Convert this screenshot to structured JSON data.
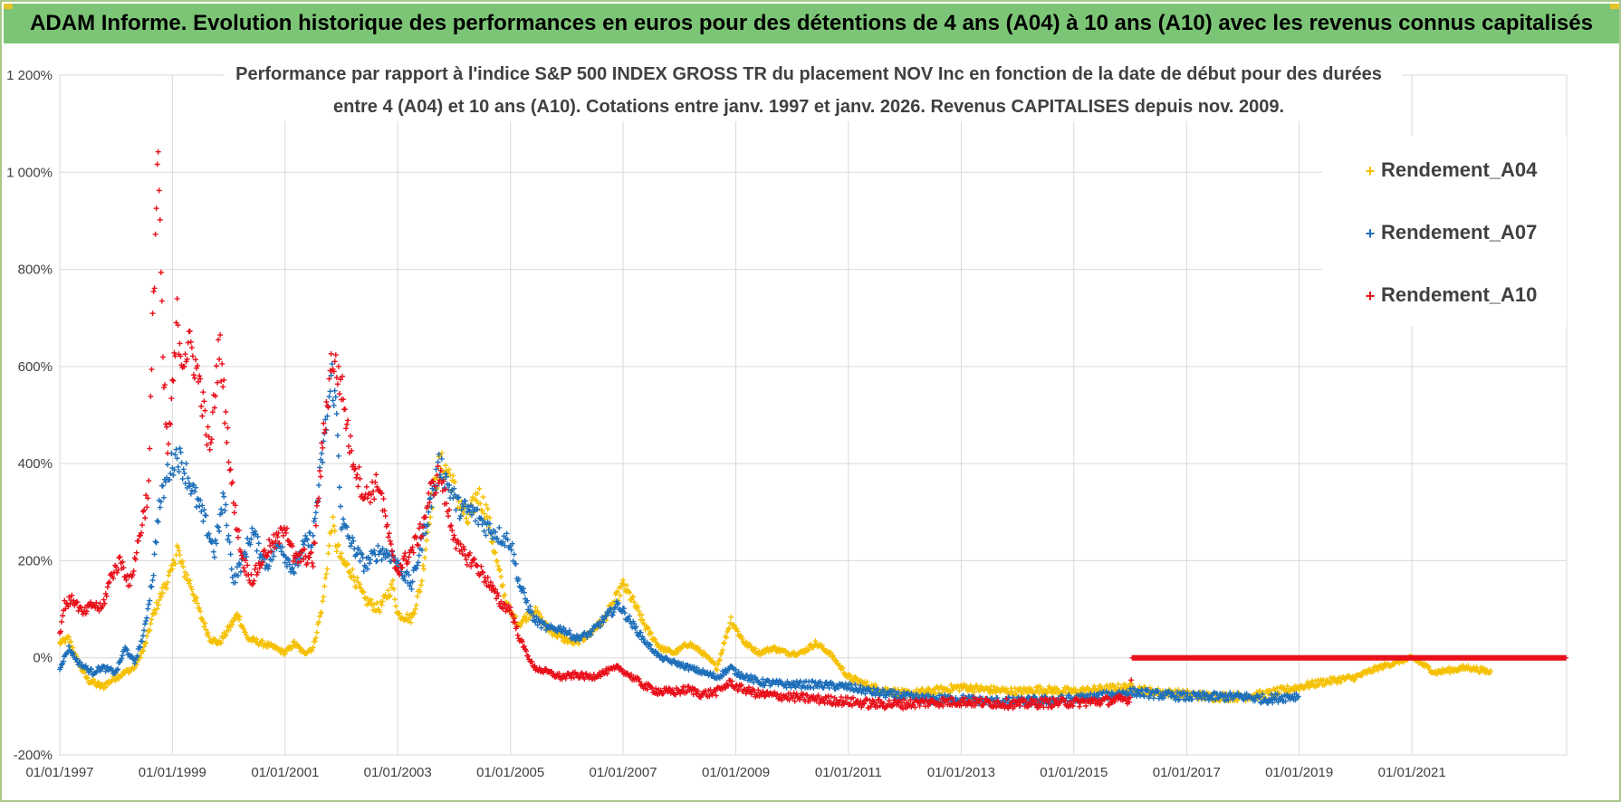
{
  "header": {
    "title": "ADAM Informe. Evolution historique des performances en euros pour des détentions de 4 ans (A04) à 10 ans (A10) avec les revenus connus capitalisés"
  },
  "chart_data": {
    "type": "scatter",
    "title_lines": [
      "Performance par rapport à l'indice S&P 500 INDEX GROSS TR  du placement NOV Inc en fonction de la date de début pour des durées",
      "entre 4 (A04) et 10 ans (A10). Cotations entre janv. 1997 et janv. 2026. Revenus CAPITALISES depuis nov. 2009."
    ],
    "xlabel": "",
    "ylabel": "",
    "x_range": [
      "1997-01-01",
      "2023-10-01"
    ],
    "ylim": [
      -200,
      1200
    ],
    "grid": true,
    "legend_position": "top-right",
    "x_tick_labels": [
      "01/01/1997",
      "01/01/1999",
      "01/01/2001",
      "01/01/2003",
      "01/01/2005",
      "01/01/2007",
      "01/01/2009",
      "01/01/2011",
      "01/01/2013",
      "01/01/2015",
      "01/01/2017",
      "01/01/2019",
      "01/01/2021"
    ],
    "x_tick_dates": [
      "1997-01-01",
      "1999-01-01",
      "2001-01-01",
      "2003-01-01",
      "2005-01-01",
      "2007-01-01",
      "2009-01-01",
      "2011-01-01",
      "2013-01-01",
      "2015-01-01",
      "2017-01-01",
      "2019-01-01",
      "2021-01-01"
    ],
    "y_tick_values": [
      -200,
      0,
      200,
      400,
      600,
      800,
      1000,
      1200
    ],
    "y_tick_labels": [
      "-200%",
      "0%",
      "200%",
      "400%",
      "600%",
      "800%",
      "1 000%",
      "1 200%"
    ],
    "series": [
      {
        "name": "Rendement_A04",
        "color": "#f5c000",
        "points": [
          [
            "1997-01-01",
            30
          ],
          [
            "1997-03-01",
            40
          ],
          [
            "1997-05-01",
            -10
          ],
          [
            "1997-07-01",
            -45
          ],
          [
            "1997-10-01",
            -60
          ],
          [
            "1998-01-01",
            -40
          ],
          [
            "1998-03-01",
            -30
          ],
          [
            "1998-05-01",
            -20
          ],
          [
            "1998-07-01",
            20
          ],
          [
            "1998-09-01",
            90
          ],
          [
            "1998-11-01",
            140
          ],
          [
            "1999-01-01",
            180
          ],
          [
            "1999-02-01",
            230
          ],
          [
            "1999-03-01",
            190
          ],
          [
            "1999-05-01",
            150
          ],
          [
            "1999-07-01",
            90
          ],
          [
            "1999-09-01",
            40
          ],
          [
            "1999-11-01",
            30
          ],
          [
            "2000-01-01",
            60
          ],
          [
            "2000-03-01",
            90
          ],
          [
            "2000-05-01",
            40
          ],
          [
            "2000-08-01",
            30
          ],
          [
            "2000-11-01",
            20
          ],
          [
            "2001-01-01",
            10
          ],
          [
            "2001-03-01",
            30
          ],
          [
            "2001-05-01",
            10
          ],
          [
            "2001-07-01",
            20
          ],
          [
            "2001-09-01",
            110
          ],
          [
            "2001-11-01",
            280
          ],
          [
            "2001-12-01",
            230
          ],
          [
            "2002-01-01",
            200
          ],
          [
            "2002-03-01",
            180
          ],
          [
            "2002-06-01",
            120
          ],
          [
            "2002-09-01",
            100
          ],
          [
            "2002-12-01",
            150
          ],
          [
            "2003-01-01",
            90
          ],
          [
            "2003-04-01",
            80
          ],
          [
            "2003-06-01",
            150
          ],
          [
            "2003-08-01",
            310
          ],
          [
            "2003-10-01",
            400
          ],
          [
            "2003-12-01",
            380
          ],
          [
            "2004-02-01",
            320
          ],
          [
            "2004-04-01",
            280
          ],
          [
            "2004-06-01",
            340
          ],
          [
            "2004-08-01",
            300
          ],
          [
            "2004-10-01",
            200
          ],
          [
            "2004-12-01",
            120
          ],
          [
            "2005-01-01",
            90
          ],
          [
            "2005-03-01",
            70
          ],
          [
            "2005-06-01",
            100
          ],
          [
            "2005-09-01",
            60
          ],
          [
            "2005-12-01",
            40
          ],
          [
            "2006-03-01",
            30
          ],
          [
            "2006-06-01",
            50
          ],
          [
            "2006-09-01",
            80
          ],
          [
            "2006-12-01",
            130
          ],
          [
            "2007-01-01",
            150
          ],
          [
            "2007-03-01",
            120
          ],
          [
            "2007-06-01",
            60
          ],
          [
            "2007-09-01",
            20
          ],
          [
            "2007-12-01",
            10
          ],
          [
            "2008-03-01",
            30
          ],
          [
            "2008-06-01",
            10
          ],
          [
            "2008-09-01",
            -20
          ],
          [
            "2008-12-01",
            80
          ],
          [
            "2009-01-01",
            60
          ],
          [
            "2009-03-01",
            30
          ],
          [
            "2009-06-01",
            10
          ],
          [
            "2009-09-01",
            20
          ],
          [
            "2009-12-01",
            10
          ],
          [
            "2010-03-01",
            10
          ],
          [
            "2010-06-01",
            30
          ],
          [
            "2010-09-01",
            10
          ],
          [
            "2011-01-01",
            -40
          ],
          [
            "2011-06-01",
            -60
          ],
          [
            "2012-01-01",
            -75
          ],
          [
            "2012-06-01",
            -70
          ],
          [
            "2013-01-01",
            -60
          ],
          [
            "2013-06-01",
            -65
          ],
          [
            "2014-01-01",
            -70
          ],
          [
            "2014-06-01",
            -65
          ],
          [
            "2015-01-01",
            -70
          ],
          [
            "2015-06-01",
            -65
          ],
          [
            "2016-01-01",
            -60
          ],
          [
            "2016-06-01",
            -70
          ],
          [
            "2017-01-01",
            -75
          ],
          [
            "2017-06-01",
            -80
          ],
          [
            "2018-01-01",
            -80
          ],
          [
            "2018-06-01",
            -75
          ],
          [
            "2019-01-01",
            -60
          ],
          [
            "2019-06-01",
            -50
          ],
          [
            "2020-01-01",
            -40
          ],
          [
            "2020-06-01",
            -20
          ],
          [
            "2021-01-01",
            0
          ],
          [
            "2021-06-01",
            -30
          ],
          [
            "2022-01-01",
            -20
          ],
          [
            "2022-06-01",
            -30
          ]
        ]
      },
      {
        "name": "Rendement_A07",
        "color": "#1f6fba",
        "points": [
          [
            "1997-01-01",
            -20
          ],
          [
            "1997-03-01",
            20
          ],
          [
            "1997-05-01",
            -10
          ],
          [
            "1997-08-01",
            -30
          ],
          [
            "1997-10-01",
            -20
          ],
          [
            "1998-01-01",
            -30
          ],
          [
            "1998-03-01",
            20
          ],
          [
            "1998-05-01",
            -10
          ],
          [
            "1998-07-01",
            50
          ],
          [
            "1998-09-01",
            180
          ],
          [
            "1998-10-01",
            300
          ],
          [
            "1998-12-01",
            380
          ],
          [
            "1999-02-01",
            420
          ],
          [
            "1999-04-01",
            380
          ],
          [
            "1999-06-01",
            330
          ],
          [
            "1999-08-01",
            280
          ],
          [
            "1999-10-01",
            220
          ],
          [
            "1999-12-01",
            330
          ],
          [
            "2000-02-01",
            160
          ],
          [
            "2000-04-01",
            200
          ],
          [
            "2000-06-01",
            260
          ],
          [
            "2000-09-01",
            190
          ],
          [
            "2000-12-01",
            240
          ],
          [
            "2001-01-01",
            210
          ],
          [
            "2001-03-01",
            180
          ],
          [
            "2001-05-01",
            230
          ],
          [
            "2001-07-01",
            250
          ],
          [
            "2001-09-01",
            420
          ],
          [
            "2001-11-01",
            580
          ],
          [
            "2001-12-01",
            500
          ],
          [
            "2002-01-01",
            280
          ],
          [
            "2002-03-01",
            240
          ],
          [
            "2002-06-01",
            190
          ],
          [
            "2002-09-01",
            220
          ],
          [
            "2002-12-01",
            210
          ],
          [
            "2003-01-01",
            190
          ],
          [
            "2003-04-01",
            150
          ],
          [
            "2003-06-01",
            230
          ],
          [
            "2003-08-01",
            320
          ],
          [
            "2003-10-01",
            400
          ],
          [
            "2003-12-01",
            350
          ],
          [
            "2004-02-01",
            310
          ],
          [
            "2004-05-01",
            300
          ],
          [
            "2004-08-01",
            270
          ],
          [
            "2004-11-01",
            250
          ],
          [
            "2005-01-01",
            240
          ],
          [
            "2005-03-01",
            150
          ],
          [
            "2005-06-01",
            80
          ],
          [
            "2005-09-01",
            60
          ],
          [
            "2005-12-01",
            60
          ],
          [
            "2006-03-01",
            40
          ],
          [
            "2006-06-01",
            50
          ],
          [
            "2006-09-01",
            80
          ],
          [
            "2006-12-01",
            110
          ],
          [
            "2007-03-01",
            70
          ],
          [
            "2007-06-01",
            30
          ],
          [
            "2007-09-01",
            0
          ],
          [
            "2007-12-01",
            -10
          ],
          [
            "2008-03-01",
            -20
          ],
          [
            "2008-06-01",
            -30
          ],
          [
            "2008-09-01",
            -40
          ],
          [
            "2008-12-01",
            -20
          ],
          [
            "2009-01-01",
            -30
          ],
          [
            "2009-06-01",
            -50
          ],
          [
            "2009-12-01",
            -55
          ],
          [
            "2010-06-01",
            -55
          ],
          [
            "2011-01-01",
            -60
          ],
          [
            "2011-06-01",
            -70
          ],
          [
            "2012-01-01",
            -80
          ],
          [
            "2012-06-01",
            -85
          ],
          [
            "2013-01-01",
            -85
          ],
          [
            "2013-06-01",
            -90
          ],
          [
            "2014-01-01",
            -90
          ],
          [
            "2014-06-01",
            -88
          ],
          [
            "2015-01-01",
            -85
          ],
          [
            "2015-06-01",
            -80
          ],
          [
            "2016-01-01",
            -70
          ],
          [
            "2016-06-01",
            -75
          ],
          [
            "2017-01-01",
            -80
          ],
          [
            "2017-06-01",
            -80
          ],
          [
            "2018-01-01",
            -80
          ],
          [
            "2018-06-01",
            -85
          ],
          [
            "2019-01-01",
            -78
          ]
        ]
      },
      {
        "name": "Rendement_A10",
        "color": "#e8101b",
        "points": [
          [
            "1997-01-01",
            50
          ],
          [
            "1997-02-01",
            110
          ],
          [
            "1997-04-01",
            120
          ],
          [
            "1997-06-01",
            90
          ],
          [
            "1997-08-01",
            110
          ],
          [
            "1997-10-01",
            100
          ],
          [
            "1997-12-01",
            170
          ],
          [
            "1998-02-01",
            200
          ],
          [
            "1998-04-01",
            150
          ],
          [
            "1998-06-01",
            250
          ],
          [
            "1998-08-01",
            350
          ],
          [
            "1998-09-01",
            750
          ],
          [
            "1998-10-01",
            1060
          ],
          [
            "1998-11-01",
            600
          ],
          [
            "1998-12-01",
            420
          ],
          [
            "1999-01-01",
            540
          ],
          [
            "1999-02-01",
            700
          ],
          [
            "1999-03-01",
            620
          ],
          [
            "1999-05-01",
            640
          ],
          [
            "1999-07-01",
            560
          ],
          [
            "1999-09-01",
            420
          ],
          [
            "1999-11-01",
            650
          ],
          [
            "1999-12-01",
            540
          ],
          [
            "2000-02-01",
            320
          ],
          [
            "2000-04-01",
            200
          ],
          [
            "2000-06-01",
            160
          ],
          [
            "2000-09-01",
            220
          ],
          [
            "2000-12-01",
            250
          ],
          [
            "2001-01-01",
            280
          ],
          [
            "2001-03-01",
            200
          ],
          [
            "2001-05-01",
            210
          ],
          [
            "2001-07-01",
            200
          ],
          [
            "2001-09-01",
            440
          ],
          [
            "2001-11-01",
            620
          ],
          [
            "2002-01-01",
            560
          ],
          [
            "2002-03-01",
            430
          ],
          [
            "2002-06-01",
            330
          ],
          [
            "2002-09-01",
            360
          ],
          [
            "2002-12-01",
            200
          ],
          [
            "2003-01-01",
            180
          ],
          [
            "2003-04-01",
            220
          ],
          [
            "2003-06-01",
            260
          ],
          [
            "2003-08-01",
            340
          ],
          [
            "2003-10-01",
            380
          ],
          [
            "2003-12-01",
            290
          ],
          [
            "2004-02-01",
            220
          ],
          [
            "2004-05-01",
            200
          ],
          [
            "2004-08-01",
            160
          ],
          [
            "2004-11-01",
            110
          ],
          [
            "2005-01-01",
            100
          ],
          [
            "2005-03-01",
            40
          ],
          [
            "2005-06-01",
            -20
          ],
          [
            "2005-09-01",
            -30
          ],
          [
            "2005-12-01",
            -40
          ],
          [
            "2006-03-01",
            -35
          ],
          [
            "2006-06-01",
            -40
          ],
          [
            "2006-09-01",
            -30
          ],
          [
            "2006-12-01",
            -20
          ],
          [
            "2007-03-01",
            -40
          ],
          [
            "2007-06-01",
            -60
          ],
          [
            "2007-09-01",
            -70
          ],
          [
            "2007-12-01",
            -70
          ],
          [
            "2008-03-01",
            -65
          ],
          [
            "2008-06-01",
            -75
          ],
          [
            "2008-09-01",
            -70
          ],
          [
            "2008-12-01",
            -50
          ],
          [
            "2009-01-01",
            -60
          ],
          [
            "2009-06-01",
            -75
          ],
          [
            "2009-12-01",
            -80
          ],
          [
            "2010-06-01",
            -85
          ],
          [
            "2011-01-01",
            -90
          ],
          [
            "2011-06-01",
            -95
          ],
          [
            "2012-01-01",
            -95
          ],
          [
            "2012-06-01",
            -92
          ],
          [
            "2013-01-01",
            -90
          ],
          [
            "2013-06-01",
            -92
          ],
          [
            "2014-01-01",
            -95
          ],
          [
            "2014-06-01",
            -93
          ],
          [
            "2015-01-01",
            -92
          ],
          [
            "2015-06-01",
            -90
          ],
          [
            "2016-01-01",
            -85
          ],
          [
            "2016-01-15",
            0
          ],
          [
            "2017-01-01",
            0
          ],
          [
            "2018-01-01",
            0
          ],
          [
            "2019-01-01",
            0
          ],
          [
            "2020-01-01",
            0
          ],
          [
            "2021-01-01",
            0
          ],
          [
            "2022-01-01",
            0
          ],
          [
            "2023-01-01",
            0
          ],
          [
            "2023-10-01",
            0
          ]
        ]
      }
    ]
  }
}
